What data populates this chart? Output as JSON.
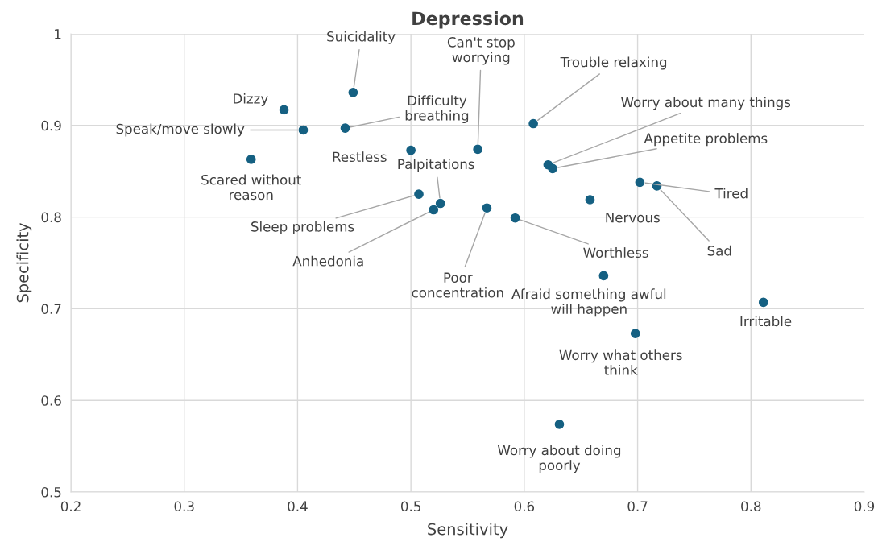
{
  "chart_data": {
    "type": "scatter",
    "title": "Depression",
    "xlabel": "Sensitivity",
    "ylabel": "Specificity",
    "xlim": [
      0.2,
      0.9
    ],
    "ylim": [
      0.5,
      1
    ],
    "xticks": [
      0.2,
      0.3,
      0.4,
      0.5,
      0.6,
      0.7,
      0.8,
      0.9
    ],
    "yticks": [
      0.5,
      0.6,
      0.7,
      0.8,
      0.9,
      1
    ],
    "grid": true,
    "marker": "circle",
    "series": [
      {
        "color": "#156082",
        "x": [
          0.449,
          0.388,
          0.405,
          0.442,
          0.359,
          0.5,
          0.559,
          0.608,
          0.621,
          0.625,
          0.702,
          0.717,
          0.658,
          0.507,
          0.526,
          0.52,
          0.567,
          0.592,
          0.67,
          0.811,
          0.698,
          0.631
        ],
        "values": [
          0.936,
          0.917,
          0.895,
          0.897,
          0.863,
          0.873,
          0.874,
          0.902,
          0.857,
          0.853,
          0.838,
          0.834,
          0.819,
          0.825,
          0.815,
          0.808,
          0.81,
          0.799,
          0.736,
          0.707,
          0.673,
          0.574
        ]
      }
    ],
    "annotations": [
      {
        "text": "Suicidality",
        "x": 0.449,
        "y": 0.936
      },
      {
        "text": "Dizzy",
        "x": 0.388,
        "y": 0.917
      },
      {
        "text": "Speak/move slowly",
        "x": 0.405,
        "y": 0.895
      },
      {
        "text": "Difficulty\nbreathing",
        "x": 0.442,
        "y": 0.897
      },
      {
        "text": "Scared without\nreason",
        "x": 0.359,
        "y": 0.863
      },
      {
        "text": "Restless",
        "x": 0.5,
        "y": 0.873
      },
      {
        "text": "Can't stop\nworrying",
        "x": 0.559,
        "y": 0.874
      },
      {
        "text": "Trouble relaxing",
        "x": 0.608,
        "y": 0.902
      },
      {
        "text": "Worry about many things",
        "x": 0.621,
        "y": 0.857
      },
      {
        "text": "Appetite problems",
        "x": 0.625,
        "y": 0.853
      },
      {
        "text": "Tired",
        "x": 0.702,
        "y": 0.838
      },
      {
        "text": "Sad",
        "x": 0.717,
        "y": 0.834
      },
      {
        "text": "Nervous",
        "x": 0.658,
        "y": 0.819
      },
      {
        "text": "Sleep problems",
        "x": 0.507,
        "y": 0.825
      },
      {
        "text": "Palpitations",
        "x": 0.526,
        "y": 0.815
      },
      {
        "text": "Anhedonia",
        "x": 0.52,
        "y": 0.808
      },
      {
        "text": "Poor\nconcentration",
        "x": 0.567,
        "y": 0.81
      },
      {
        "text": "Worthless",
        "x": 0.592,
        "y": 0.799
      },
      {
        "text": "Afraid something awful\nwill happen",
        "x": 0.67,
        "y": 0.736
      },
      {
        "text": "Irritable",
        "x": 0.811,
        "y": 0.707
      },
      {
        "text": "Worry what others\nthink",
        "x": 0.698,
        "y": 0.673
      },
      {
        "text": "Worry about doing\npoorly",
        "x": 0.631,
        "y": 0.574
      }
    ]
  }
}
